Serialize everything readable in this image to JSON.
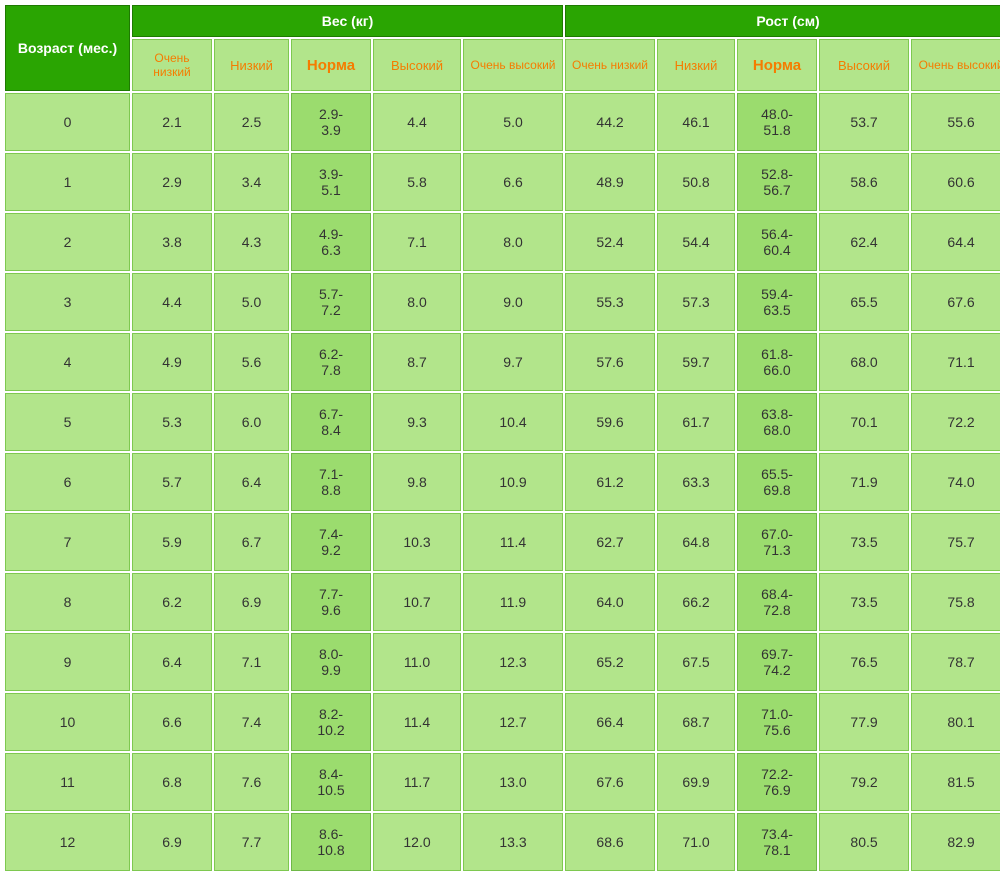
{
  "colors": {
    "header_bg": "#2aa502",
    "header_text": "#ffffff",
    "sub_bg": "#b2e58b",
    "sub_text": "#f57c00",
    "cell_bg": "#b2e58b",
    "norma_bg": "#9bdc6e",
    "cell_text": "#333333",
    "border_dark": "#1e7a01",
    "border_light": "#7ec850"
  },
  "headers": {
    "age": "Возраст (мес.)",
    "band_weight": "Вес (кг)",
    "band_height": "Рост (см)",
    "sub": {
      "very_low": "Очень низкий",
      "low": "Низкий",
      "norma": "Норма",
      "high": "Высокий",
      "very_high": "Очень высокий"
    }
  },
  "rows": [
    {
      "age": "0",
      "w": [
        "2.1",
        "2.5",
        "2.9-3.9",
        "4.4",
        "5.0"
      ],
      "h": [
        "44.2",
        "46.1",
        "48.0-51.8",
        "53.7",
        "55.6"
      ]
    },
    {
      "age": "1",
      "w": [
        "2.9",
        "3.4",
        "3.9-5.1",
        "5.8",
        "6.6"
      ],
      "h": [
        "48.9",
        "50.8",
        "52.8-56.7",
        "58.6",
        "60.6"
      ]
    },
    {
      "age": "2",
      "w": [
        "3.8",
        "4.3",
        "4.9-6.3",
        "7.1",
        "8.0"
      ],
      "h": [
        "52.4",
        "54.4",
        "56.4-60.4",
        "62.4",
        "64.4"
      ]
    },
    {
      "age": "3",
      "w": [
        "4.4",
        "5.0",
        "5.7-7.2",
        "8.0",
        "9.0"
      ],
      "h": [
        "55.3",
        "57.3",
        "59.4-63.5",
        "65.5",
        "67.6"
      ]
    },
    {
      "age": "4",
      "w": [
        "4.9",
        "5.6",
        "6.2-7.8",
        "8.7",
        "9.7"
      ],
      "h": [
        "57.6",
        "59.7",
        "61.8-66.0",
        "68.0",
        "71.1"
      ]
    },
    {
      "age": "5",
      "w": [
        "5.3",
        "6.0",
        "6.7-8.4",
        "9.3",
        "10.4"
      ],
      "h": [
        "59.6",
        "61.7",
        "63.8-68.0",
        "70.1",
        "72.2"
      ]
    },
    {
      "age": "6",
      "w": [
        "5.7",
        "6.4",
        "7.1-8.8",
        "9.8",
        "10.9"
      ],
      "h": [
        "61.2",
        "63.3",
        "65.5-69.8",
        "71.9",
        "74.0"
      ]
    },
    {
      "age": "7",
      "w": [
        "5.9",
        "6.7",
        "7.4-9.2",
        "10.3",
        "11.4"
      ],
      "h": [
        "62.7",
        "64.8",
        "67.0-71.3",
        "73.5",
        "75.7"
      ]
    },
    {
      "age": "8",
      "w": [
        "6.2",
        "6.9",
        "7.7-9.6",
        "10.7",
        "11.9"
      ],
      "h": [
        "64.0",
        "66.2",
        "68.4-72.8",
        "73.5",
        "75.8"
      ]
    },
    {
      "age": "9",
      "w": [
        "6.4",
        "7.1",
        "8.0-9.9",
        "11.0",
        "12.3"
      ],
      "h": [
        "65.2",
        "67.5",
        "69.7-74.2",
        "76.5",
        "78.7"
      ]
    },
    {
      "age": "10",
      "w": [
        "6.6",
        "7.4",
        "8.2-10.2",
        "11.4",
        "12.7"
      ],
      "h": [
        "66.4",
        "68.7",
        "71.0-75.6",
        "77.9",
        "80.1"
      ]
    },
    {
      "age": "11",
      "w": [
        "6.8",
        "7.6",
        "8.4-10.5",
        "11.7",
        "13.0"
      ],
      "h": [
        "67.6",
        "69.9",
        "72.2-76.9",
        "79.2",
        "81.5"
      ]
    },
    {
      "age": "12",
      "w": [
        "6.9",
        "7.7",
        "8.6-10.8",
        "12.0",
        "13.3"
      ],
      "h": [
        "68.6",
        "71.0",
        "73.4-78.1",
        "80.5",
        "82.9"
      ]
    }
  ]
}
